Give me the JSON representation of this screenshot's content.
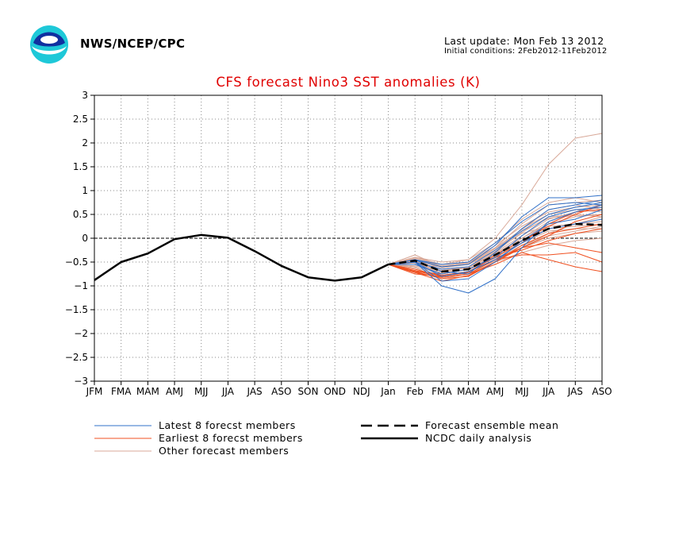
{
  "header": {
    "agency": "NWS/NCEP/CPC",
    "last_update": "Last update: Mon Feb 13 2012",
    "initial_conditions": "Initial conditions: 2Feb2012-11Feb2012"
  },
  "chart_data": {
    "type": "line",
    "title": "CFS forecast Nino3 SST anomalies (K)",
    "xlabel": "",
    "ylabel": "",
    "categories": [
      "JFM",
      "FMA",
      "MAM",
      "AMJ",
      "MJJ",
      "JJA",
      "JAS",
      "ASO",
      "SON",
      "OND",
      "NDJ",
      "Jan",
      "Feb",
      "FMA",
      "MAM",
      "AMJ",
      "MJJ",
      "JJA",
      "JAS",
      "ASO"
    ],
    "ylim": [
      -3,
      3
    ],
    "yticks": [
      "3",
      "2.5",
      "2",
      "1.5",
      "1",
      "0.5",
      "0",
      "−0.5",
      "−1",
      "−1.5",
      "−2",
      "−2.5",
      "−3"
    ],
    "ytick_values": [
      3,
      2.5,
      2,
      1.5,
      1,
      0.5,
      0,
      -0.5,
      -1,
      -1.5,
      -2,
      -2.5,
      -3
    ],
    "grid": true,
    "zero_line": true,
    "legend": [
      {
        "label": "Latest 8 forecst members",
        "color": "#3070c8",
        "style": "thin"
      },
      {
        "label": "Earliest 8 forecst members",
        "color": "#f05020",
        "style": "thin"
      },
      {
        "label": "Other forecast members",
        "color": "#d8a898",
        "style": "thin"
      },
      {
        "label": "Forecast ensemble mean",
        "color": "#000000",
        "style": "dashed"
      },
      {
        "label": "NCDC daily analysis",
        "color": "#000000",
        "style": "solid"
      }
    ],
    "series": [
      {
        "name": "NCDC daily analysis",
        "color": "#000000",
        "style": "solid",
        "x": [
          0,
          1,
          2,
          3,
          4,
          5,
          6,
          7,
          8,
          9,
          10,
          11
        ],
        "values": [
          -0.88,
          -0.5,
          -0.32,
          -0.02,
          0.07,
          0.01,
          -0.27,
          -0.58,
          -0.82,
          -0.89,
          -0.82,
          -0.55
        ]
      },
      {
        "name": "Forecast ensemble mean",
        "color": "#000000",
        "style": "dashed",
        "x": [
          11,
          12,
          13,
          14,
          15,
          16,
          17,
          18,
          19
        ],
        "values": [
          -0.55,
          -0.47,
          -0.7,
          -0.65,
          -0.35,
          -0.05,
          0.2,
          0.3,
          0.28
        ]
      },
      {
        "name": "Latest 8 forecst members",
        "color": "#3070c8",
        "style": "thin",
        "x": [
          11,
          12,
          13,
          14,
          15,
          16,
          17,
          18,
          19
        ],
        "members": [
          [
            -0.55,
            -0.5,
            -1.0,
            -1.15,
            -0.85,
            -0.2,
            0.35,
            0.55,
            0.7
          ],
          [
            -0.55,
            -0.45,
            -0.6,
            -0.55,
            -0.15,
            0.45,
            0.85,
            0.85,
            0.9
          ],
          [
            -0.55,
            -0.5,
            -0.9,
            -0.85,
            -0.5,
            -0.05,
            0.3,
            0.4,
            0.6
          ],
          [
            -0.55,
            -0.45,
            -0.7,
            -0.75,
            -0.3,
            0.2,
            0.6,
            0.7,
            0.8
          ],
          [
            -0.55,
            -0.55,
            -0.75,
            -0.65,
            -0.4,
            0.05,
            0.45,
            0.6,
            0.65
          ],
          [
            -0.55,
            -0.45,
            -0.55,
            -0.5,
            -0.1,
            0.35,
            0.7,
            0.75,
            0.7
          ],
          [
            -0.55,
            -0.5,
            -0.8,
            -0.7,
            -0.45,
            -0.1,
            0.2,
            0.3,
            0.4
          ],
          [
            -0.55,
            -0.5,
            -0.65,
            -0.6,
            -0.25,
            0.15,
            0.5,
            0.65,
            0.75
          ]
        ]
      },
      {
        "name": "Earliest 8 forecst members",
        "color": "#f05020",
        "style": "thin",
        "x": [
          11,
          12,
          13,
          14,
          15,
          16,
          17,
          18,
          19
        ],
        "members": [
          [
            -0.55,
            -0.72,
            -0.82,
            -0.75,
            -0.55,
            -0.3,
            -0.45,
            -0.6,
            -0.7
          ],
          [
            -0.55,
            -0.65,
            -0.8,
            -0.7,
            -0.4,
            -0.1,
            0.3,
            0.55,
            0.6
          ],
          [
            -0.55,
            -0.7,
            -0.85,
            -0.8,
            -0.5,
            -0.2,
            0.05,
            0.35,
            0.5
          ],
          [
            -0.55,
            -0.68,
            -0.78,
            -0.7,
            -0.45,
            -0.2,
            -0.1,
            -0.2,
            -0.3
          ],
          [
            -0.55,
            -0.75,
            -0.8,
            -0.72,
            -0.35,
            -0.05,
            0.25,
            0.5,
            0.7
          ],
          [
            -0.55,
            -0.7,
            -0.75,
            -0.65,
            -0.4,
            -0.25,
            -0.05,
            0.1,
            0.2
          ],
          [
            -0.55,
            -0.72,
            -0.9,
            -0.78,
            -0.5,
            -0.15,
            0.1,
            0.2,
            0.3
          ],
          [
            -0.55,
            -0.68,
            -0.82,
            -0.75,
            -0.45,
            -0.35,
            -0.35,
            -0.3,
            -0.5
          ]
        ]
      },
      {
        "name": "Other forecast members",
        "color": "#d8a898",
        "style": "thin",
        "x": [
          11,
          12,
          13,
          14,
          15,
          16,
          17,
          18,
          19
        ],
        "members": [
          [
            -0.55,
            -0.4,
            -0.5,
            -0.45,
            0.0,
            0.7,
            1.55,
            2.1,
            2.2
          ],
          [
            -0.55,
            -0.35,
            -0.6,
            -0.5,
            -0.2,
            0.3,
            0.7,
            0.75,
            0.8
          ],
          [
            -0.55,
            -0.5,
            -0.65,
            -0.6,
            -0.35,
            0.0,
            0.3,
            0.45,
            0.5
          ],
          [
            -0.55,
            -0.45,
            -0.7,
            -0.6,
            -0.3,
            0.2,
            0.5,
            0.6,
            0.55
          ],
          [
            -0.55,
            -0.55,
            -0.6,
            -0.55,
            -0.25,
            0.1,
            0.25,
            0.3,
            0.35
          ],
          [
            -0.55,
            -0.42,
            -0.55,
            -0.5,
            -0.15,
            0.25,
            0.55,
            0.65,
            0.7
          ],
          [
            -0.55,
            -0.5,
            -0.75,
            -0.65,
            -0.4,
            -0.05,
            0.2,
            0.25,
            0.3
          ],
          [
            -0.55,
            -0.6,
            -0.8,
            -0.7,
            -0.45,
            -0.15,
            0.05,
            0.15,
            0.25
          ],
          [
            -0.55,
            -0.48,
            -0.65,
            -0.6,
            -0.3,
            0.05,
            0.4,
            0.55,
            0.6
          ],
          [
            -0.55,
            -0.52,
            -0.7,
            -0.62,
            -0.38,
            -0.1,
            0.15,
            0.2,
            0.2
          ],
          [
            -0.55,
            -0.4,
            -0.55,
            -0.45,
            -0.1,
            0.4,
            0.75,
            0.85,
            0.75
          ],
          [
            -0.55,
            -0.58,
            -0.72,
            -0.66,
            -0.42,
            -0.2,
            0.0,
            0.1,
            0.15
          ],
          [
            -0.55,
            -0.45,
            -0.62,
            -0.55,
            -0.28,
            0.12,
            0.45,
            0.5,
            0.45
          ],
          [
            -0.55,
            -0.5,
            -0.68,
            -0.6,
            -0.32,
            0.0,
            0.35,
            0.55,
            0.65
          ],
          [
            -0.55,
            -0.62,
            -0.85,
            -0.75,
            -0.5,
            -0.3,
            -0.15,
            -0.05,
            0.0
          ],
          [
            -0.55,
            -0.44,
            -0.58,
            -0.52,
            -0.2,
            0.18,
            0.6,
            0.7,
            0.6
          ],
          [
            -0.55,
            -0.55,
            -0.78,
            -0.7,
            -0.48,
            -0.2,
            0.1,
            0.3,
            0.45
          ],
          [
            -0.55,
            -0.47,
            -0.6,
            -0.54,
            -0.22,
            0.15,
            0.42,
            0.48,
            0.5
          ]
        ]
      }
    ]
  }
}
